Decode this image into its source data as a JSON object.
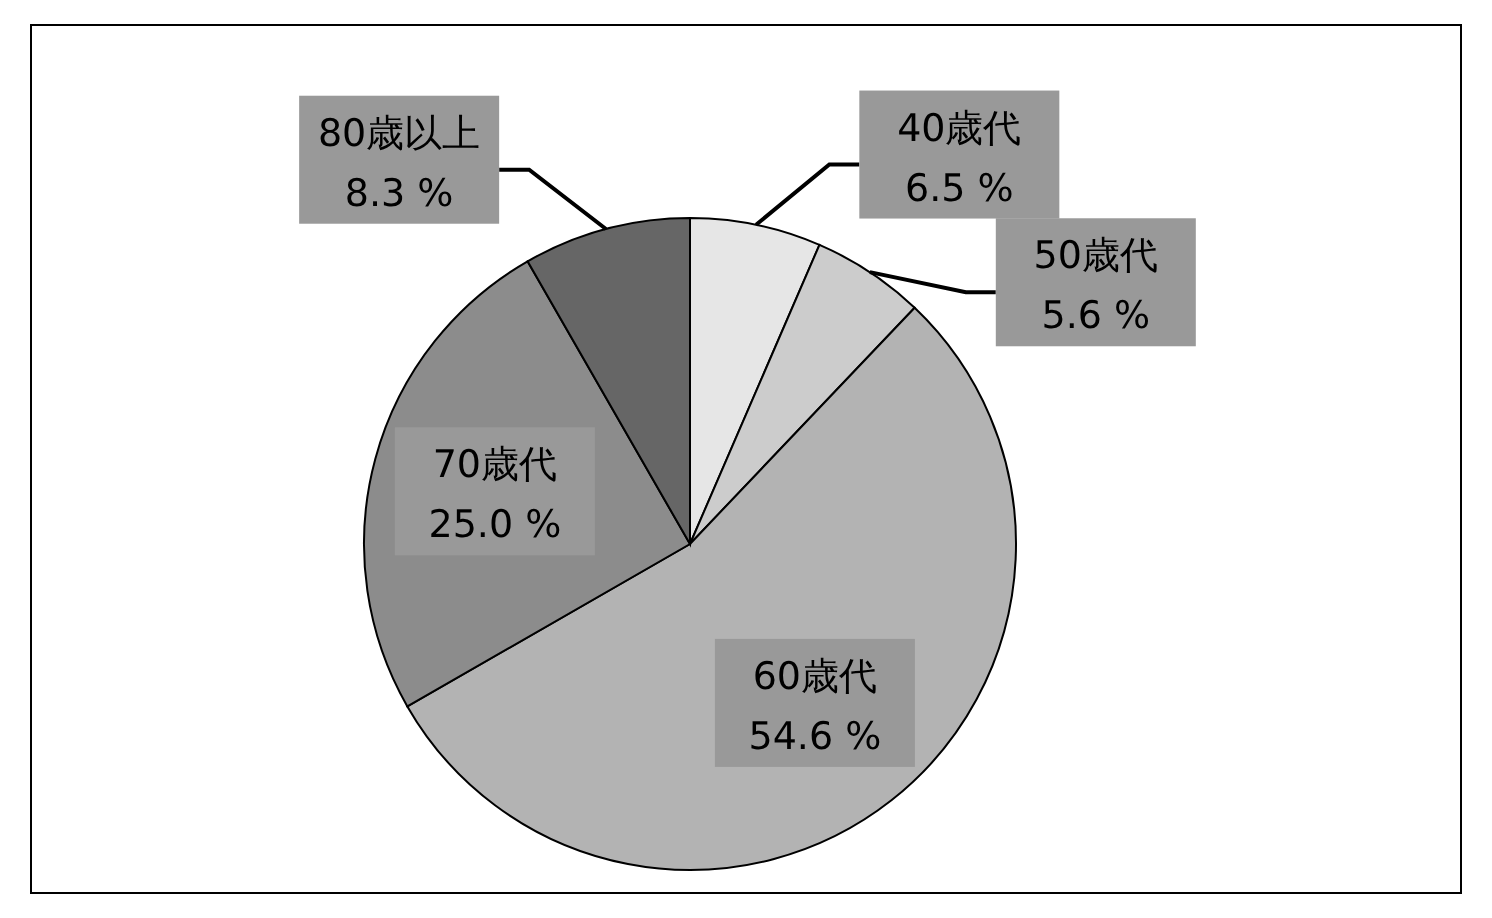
{
  "chart_data": {
    "type": "pie",
    "categories": [
      "40歳代",
      "50歳代",
      "60歳代",
      "70歳代",
      "80歳以上"
    ],
    "values": [
      6.5,
      5.6,
      54.6,
      25.0,
      8.3
    ],
    "colors": [
      "#e6e6e6",
      "#cccccc",
      "#b3b3b3",
      "#8c8c8c",
      "#666666"
    ],
    "value_labels": [
      "6.5 %",
      "5.6 %",
      "54.6 %",
      "25.0 %",
      "8.3 %"
    ]
  }
}
